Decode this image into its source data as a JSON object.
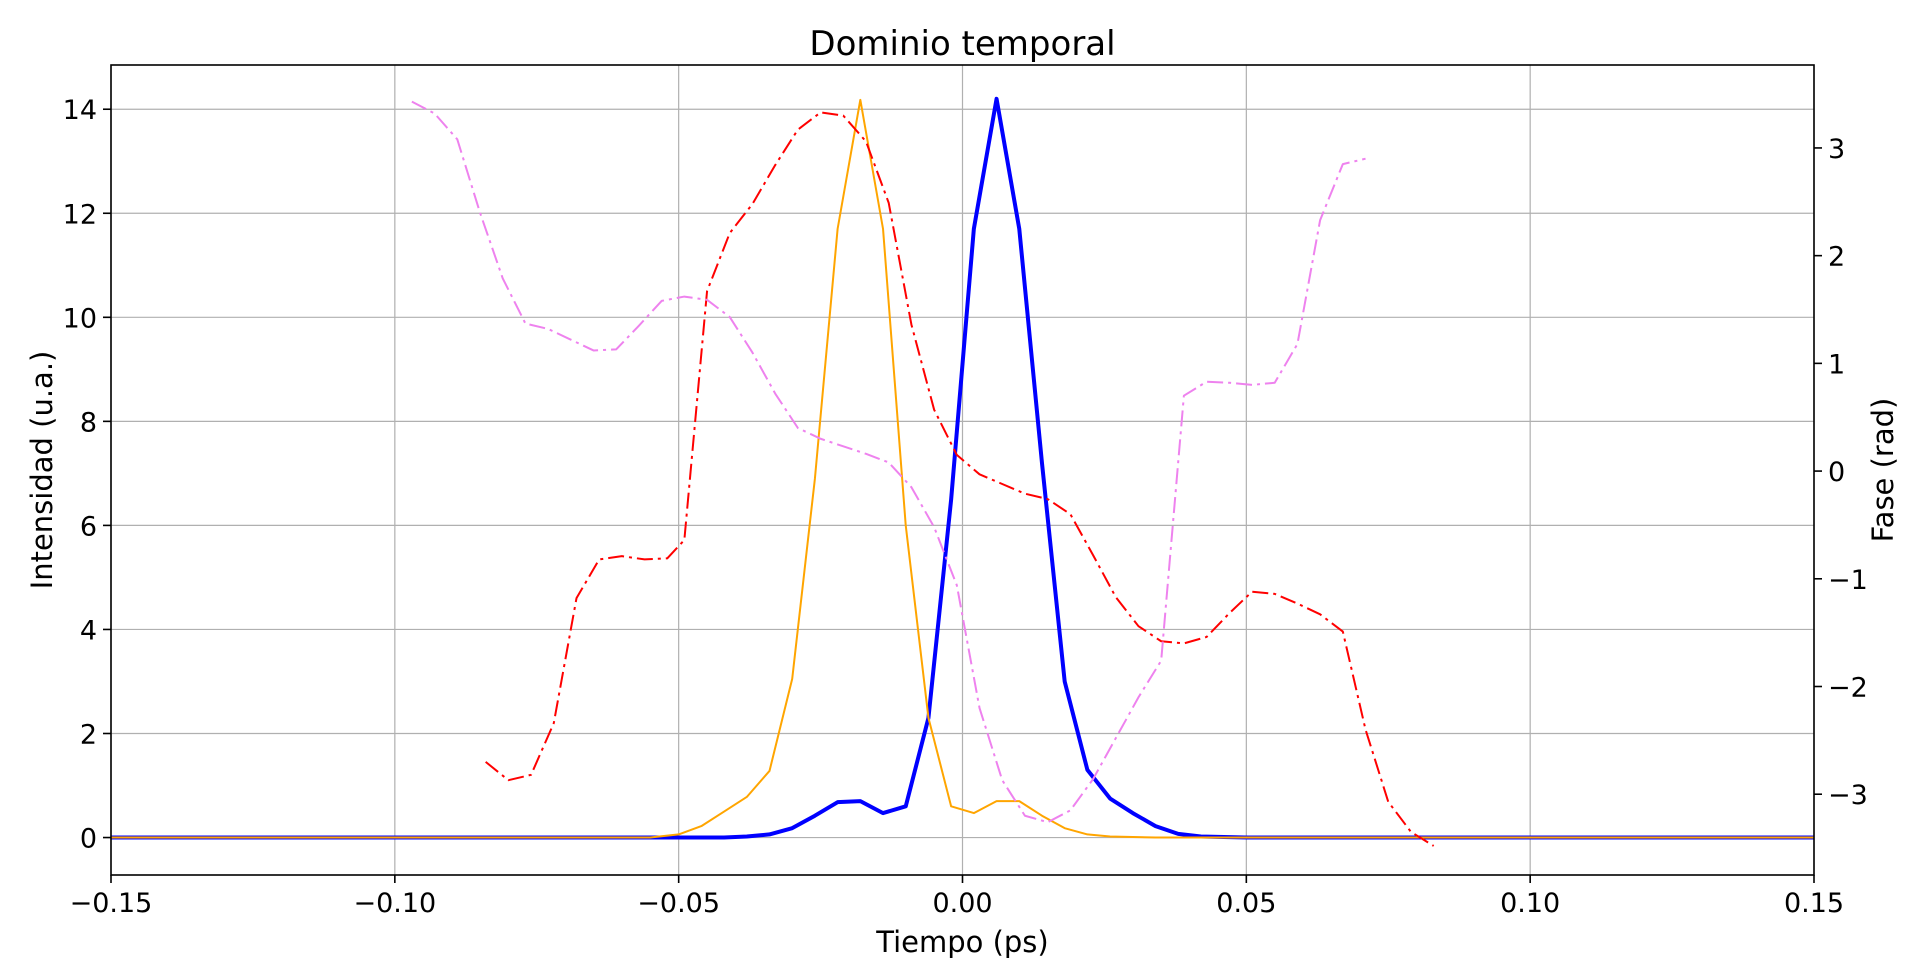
{
  "chart_data": {
    "type": "line",
    "title": "Dominio temporal",
    "xlabel": "Tiempo (ps)",
    "ylabel": "Intensidad (u.a.)",
    "y2label": "Fase (rad)",
    "xlim": [
      -0.15,
      0.15
    ],
    "ylim": [
      -0.72,
      14.85
    ],
    "y2lim": [
      -3.75,
      3.77
    ],
    "grid": true,
    "xticks": [
      -0.15,
      -0.1,
      -0.05,
      0.0,
      0.05,
      0.1,
      0.15
    ],
    "xtick_labels": [
      "−0.15",
      "−0.10",
      "−0.05",
      "0.00",
      "0.05",
      "0.10",
      "0.15"
    ],
    "yticks": [
      0,
      2,
      4,
      6,
      8,
      10,
      12,
      14
    ],
    "ytick_labels": [
      "0",
      "2",
      "4",
      "6",
      "8",
      "10",
      "12",
      "14"
    ],
    "y2ticks": [
      -3,
      -2,
      -1,
      0,
      1,
      2,
      3
    ],
    "y2tick_labels": [
      "−3",
      "−2",
      "−1",
      "0",
      "1",
      "2",
      "3"
    ],
    "series": [
      {
        "axis": "left",
        "color": "#0000ff",
        "style": "solid",
        "width": 4,
        "x": [
          -0.15,
          -0.05,
          -0.042,
          -0.038,
          -0.034,
          -0.03,
          -0.026,
          -0.022,
          -0.018,
          -0.014,
          -0.01,
          -0.006,
          -0.002,
          0.002,
          0.006,
          0.01,
          0.014,
          0.018,
          0.022,
          0.026,
          0.03,
          0.034,
          0.038,
          0.042,
          0.05,
          0.15
        ],
        "y": [
          0.0,
          0.0,
          0.0,
          0.02,
          0.06,
          0.18,
          0.42,
          0.68,
          0.7,
          0.47,
          0.6,
          2.3,
          6.5,
          11.7,
          14.2,
          11.7,
          7.2,
          3.0,
          1.3,
          0.75,
          0.47,
          0.22,
          0.07,
          0.02,
          0.0,
          0.0
        ]
      },
      {
        "axis": "left",
        "color": "#ffa500",
        "style": "solid",
        "width": 2,
        "x": [
          -0.15,
          -0.055,
          -0.05,
          -0.046,
          -0.042,
          -0.038,
          -0.034,
          -0.03,
          -0.026,
          -0.022,
          -0.018,
          -0.014,
          -0.01,
          -0.006,
          -0.002,
          0.002,
          0.006,
          0.01,
          0.014,
          0.018,
          0.022,
          0.026,
          0.03,
          0.034,
          0.04,
          0.15
        ],
        "y": [
          0.0,
          0.0,
          0.06,
          0.22,
          0.5,
          0.78,
          1.28,
          3.05,
          6.9,
          11.7,
          14.18,
          11.7,
          6.0,
          2.3,
          0.6,
          0.47,
          0.7,
          0.7,
          0.42,
          0.18,
          0.06,
          0.02,
          0.01,
          0.0,
          0.0,
          0.0
        ]
      },
      {
        "axis": "right",
        "color": "#ff0000",
        "style": "dashdot",
        "width": 2,
        "x": [
          -0.084,
          -0.08,
          -0.076,
          -0.072,
          -0.068,
          -0.064,
          -0.06,
          -0.056,
          -0.052,
          -0.049,
          -0.045,
          -0.041,
          -0.037,
          -0.033,
          -0.029,
          -0.025,
          -0.021,
          -0.017,
          -0.013,
          -0.009,
          -0.005,
          -0.001,
          0.003,
          0.007,
          0.011,
          0.015,
          0.019,
          0.023,
          0.027,
          0.031,
          0.035,
          0.039,
          0.043,
          0.047,
          0.051,
          0.055,
          0.059,
          0.063,
          0.067,
          0.071,
          0.075,
          0.079,
          0.083
        ],
        "y": [
          -2.7,
          -2.87,
          -2.82,
          -2.34,
          -1.18,
          -0.82,
          -0.79,
          -0.82,
          -0.81,
          -0.64,
          1.67,
          2.21,
          2.48,
          2.84,
          3.17,
          3.33,
          3.3,
          3.06,
          2.49,
          1.36,
          0.57,
          0.15,
          -0.03,
          -0.12,
          -0.21,
          -0.26,
          -0.4,
          -0.78,
          -1.17,
          -1.44,
          -1.58,
          -1.6,
          -1.54,
          -1.32,
          -1.12,
          -1.14,
          -1.23,
          -1.33,
          -1.49,
          -2.4,
          -3.07,
          -3.35,
          -3.48
        ]
      },
      {
        "axis": "right",
        "color": "#ee82ee",
        "style": "dashdot",
        "width": 2,
        "x": [
          -0.097,
          -0.093,
          -0.089,
          -0.085,
          -0.081,
          -0.077,
          -0.073,
          -0.069,
          -0.065,
          -0.061,
          -0.057,
          -0.053,
          -0.049,
          -0.045,
          -0.041,
          -0.037,
          -0.033,
          -0.029,
          -0.025,
          -0.021,
          -0.017,
          -0.013,
          -0.009,
          -0.005,
          -0.001,
          0.003,
          0.007,
          0.011,
          0.015,
          0.019,
          0.023,
          0.027,
          0.031,
          0.035,
          0.039,
          0.043,
          0.047,
          0.051,
          0.055,
          0.059,
          0.063,
          0.067,
          0.071
        ],
        "y": [
          3.43,
          3.32,
          3.08,
          2.4,
          1.79,
          1.37,
          1.32,
          1.22,
          1.12,
          1.13,
          1.35,
          1.58,
          1.62,
          1.59,
          1.43,
          1.1,
          0.72,
          0.4,
          0.3,
          0.23,
          0.16,
          0.08,
          -0.15,
          -0.52,
          -1.06,
          -2.2,
          -2.87,
          -3.2,
          -3.26,
          -3.15,
          -2.86,
          -2.48,
          -2.1,
          -1.76,
          0.7,
          0.83,
          0.82,
          0.8,
          0.82,
          1.18,
          2.33,
          2.85,
          2.9
        ]
      }
    ]
  }
}
